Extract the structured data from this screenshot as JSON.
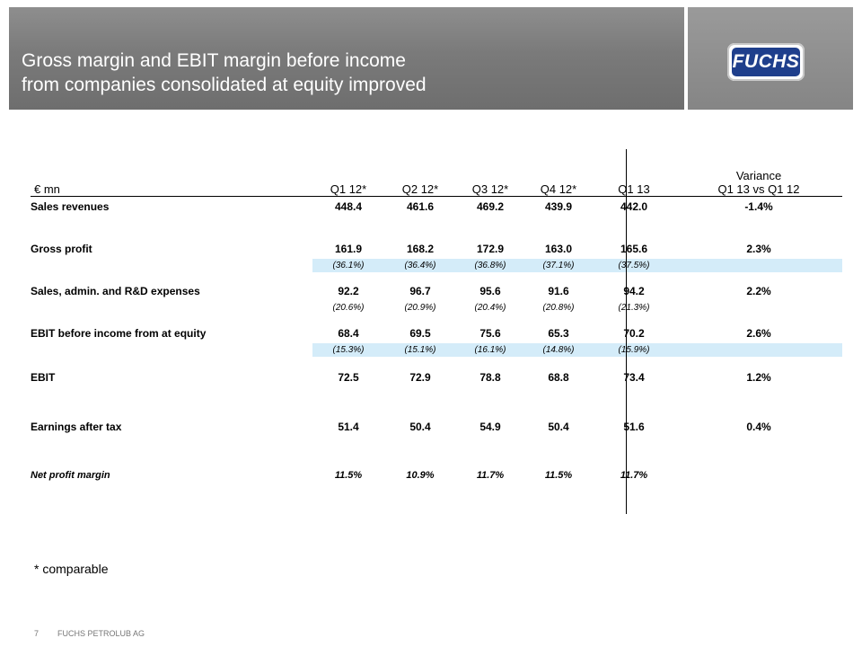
{
  "header": {
    "title_line1": "Gross margin and EBIT margin before income",
    "title_line2": "from companies consolidated at equity improved"
  },
  "logo": {
    "text": "FUCHS",
    "colors": {
      "blue": "#1f3f8c",
      "red": "#d8262a"
    }
  },
  "table": {
    "columns": [
      "€ mn",
      "Q1 12*",
      "Q2 12*",
      "Q3 12*",
      "Q4 12*",
      "Q1 13",
      "Variance",
      "Q1 13 vs Q1 12"
    ],
    "rows": {
      "sales": {
        "label": "Sales revenues",
        "values": [
          "448.4",
          "461.6",
          "469.2",
          "439.9",
          "442.0",
          "-1.4%"
        ]
      },
      "gross": {
        "label": "Gross profit",
        "values": [
          "161.9",
          "168.2",
          "172.9",
          "163.0",
          "165.6",
          "2.3%"
        ],
        "margins": [
          "(36.1%)",
          "(36.4%)",
          "(36.8%)",
          "(37.1%)",
          "(37.5%)"
        ]
      },
      "expenses": {
        "label": "Sales, admin. and R&D expenses",
        "values": [
          "92.2",
          "96.7",
          "95.6",
          "91.6",
          "94.2",
          "2.2%"
        ],
        "margins": [
          "(20.6%)",
          "(20.9%)",
          "(20.4%)",
          "(20.8%)",
          "(21.3%)"
        ]
      },
      "ebit_eq": {
        "label": "EBIT before income from at equity",
        "values": [
          "68.4",
          "69.5",
          "75.6",
          "65.3",
          "70.2",
          "2.6%"
        ],
        "margins": [
          "(15.3%)",
          "(15.1%)",
          "(16.1%)",
          "(14.8%)",
          "(15.9%)"
        ]
      },
      "ebit": {
        "label": "EBIT",
        "values": [
          "72.5",
          "72.9",
          "78.8",
          "68.8",
          "73.4",
          "1.2%"
        ]
      },
      "eat": {
        "label": "Earnings after tax",
        "values": [
          "51.4",
          "50.4",
          "54.9",
          "50.4",
          "51.6",
          "0.4%"
        ]
      },
      "npm": {
        "label": "Net profit margin",
        "values": [
          "11.5%",
          "10.9%",
          "11.7%",
          "11.5%",
          "11.7%"
        ]
      }
    },
    "highlight_color": "#d4ecf9"
  },
  "footnote": "* comparable",
  "footer": {
    "page_number": "7",
    "company": "FUCHS PETROLUB AG"
  }
}
